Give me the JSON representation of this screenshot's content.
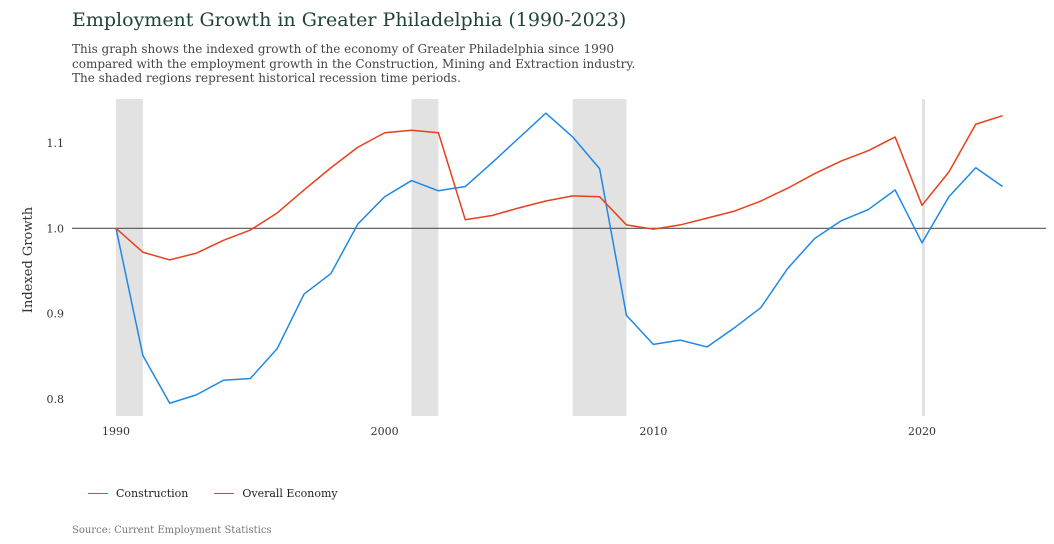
{
  "header": {
    "title": "Employment Growth in Greater Philadelphia (1990-2023)",
    "subtitle_lines": [
      "This graph shows the indexed growth of the economy of Greater Philadelphia since 1990",
      "compared with the employment growth in the Construction, Mining and Extraction industry.",
      "The shaded regions represent historical recession time periods."
    ]
  },
  "source": "Source: Current Employment Statistics",
  "colors": {
    "construction": "#1f88e5",
    "overall": "#e8401c",
    "recession": "#e2e2e2",
    "baseline": "#555555"
  },
  "chart_data": {
    "type": "line",
    "title": "Employment Growth in Greater Philadelphia (1990-2023)",
    "ylabel": "Indexed Growth",
    "xlabel": "",
    "xlim": [
      1990,
      2024.4
    ],
    "ylim": [
      0.78,
      1.15
    ],
    "xticks": [
      1990,
      2000,
      2010,
      2020
    ],
    "yticks": [
      0.8,
      0.9,
      1.0,
      1.1
    ],
    "ytick_labels": [
      "0.8",
      "0.9",
      "1.0",
      "1.1"
    ],
    "baseline": 1.0,
    "grid": false,
    "legend_position": "bottom-left",
    "recessions": [
      [
        1990,
        1991
      ],
      [
        2001,
        2002
      ],
      [
        2007,
        2009
      ],
      [
        2020,
        2020.1
      ]
    ],
    "x": [
      1990,
      1991,
      1992,
      1993,
      1994,
      1995,
      1996,
      1997,
      1998,
      1999,
      2000,
      2001,
      2002,
      2003,
      2004,
      2005,
      2006,
      2007,
      2008,
      2009,
      2010,
      2011,
      2012,
      2013,
      2014,
      2015,
      2016,
      2017,
      2018,
      2019,
      2020,
      2021,
      2022,
      2023
    ],
    "series": [
      {
        "name": "Construction",
        "color": "#1f88e5",
        "values": [
          1.0,
          0.851,
          0.795,
          0.805,
          0.822,
          0.824,
          0.859,
          0.923,
          0.947,
          1.005,
          1.037,
          1.056,
          1.044,
          1.049,
          1.077,
          1.106,
          1.135,
          1.107,
          1.07,
          0.898,
          0.864,
          0.869,
          0.861,
          0.883,
          0.907,
          0.953,
          0.988,
          1.009,
          1.022,
          1.045,
          0.983,
          1.037,
          1.071,
          1.049
        ]
      },
      {
        "name": "Overall Economy",
        "color": "#e8401c",
        "values": [
          1.0,
          0.972,
          0.963,
          0.971,
          0.986,
          0.998,
          1.018,
          1.045,
          1.071,
          1.095,
          1.112,
          1.115,
          1.112,
          1.01,
          1.015,
          1.024,
          1.032,
          1.038,
          1.037,
          1.004,
          0.999,
          1.004,
          1.012,
          1.02,
          1.032,
          1.047,
          1.064,
          1.079,
          1.091,
          1.107,
          1.027,
          1.066,
          1.122,
          1.132
        ]
      }
    ]
  }
}
